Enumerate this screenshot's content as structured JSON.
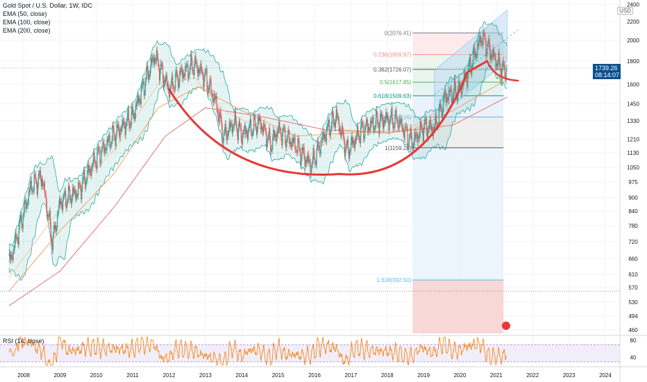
{
  "header": {
    "symbol": "Gold Spot / U.S. Dollar, 1W, IDC",
    "indicators": [
      "EMA (50, close)",
      "EMA (100, close)",
      "EMA (200, close)"
    ],
    "rsi_label": "RSI (14, close)",
    "currency": "USD"
  },
  "price_tag": {
    "price": "1739.26",
    "countdown": "08:14:07"
  },
  "colors": {
    "bull": "#26a69a",
    "bear": "#ef5350",
    "cup": "#e53935",
    "bb": "#26a69a",
    "rsi": "#f57c00",
    "ema50": "#f7c79b",
    "ema100": "#f4a261",
    "ema200": "#e57373"
  },
  "chart_data": {
    "type": "candlestick",
    "scale": "log",
    "ylim": [
      445,
      2450
    ],
    "xlim": [
      2007.6,
      2024.9
    ],
    "y_ticks": [
      2400,
      2200,
      2000,
      1800,
      1600,
      1450,
      1330,
      1210,
      1130,
      1050,
      975,
      900,
      840,
      780,
      720,
      660,
      610,
      570,
      530,
      494,
      460
    ],
    "x_ticks": [
      "2008",
      "2009",
      "2010",
      "2011",
      "2012",
      "2013",
      "2014",
      "2015",
      "2016",
      "2017",
      "2018",
      "2019",
      "2020",
      "2021",
      "2022",
      "2023",
      "2024"
    ],
    "price_path": [
      [
        2007.6,
        640
      ],
      [
        2008.2,
        950
      ],
      [
        2008.5,
        1000
      ],
      [
        2008.8,
        720
      ],
      [
        2009.0,
        880
      ],
      [
        2009.5,
        930
      ],
      [
        2010.0,
        1100
      ],
      [
        2010.5,
        1240
      ],
      [
        2011.0,
        1360
      ],
      [
        2011.6,
        1850
      ],
      [
        2011.8,
        1700
      ],
      [
        2012.0,
        1560
      ],
      [
        2012.3,
        1680
      ],
      [
        2012.7,
        1770
      ],
      [
        2013.0,
        1660
      ],
      [
        2013.3,
        1450
      ],
      [
        2013.5,
        1230
      ],
      [
        2013.8,
        1320
      ],
      [
        2014.0,
        1240
      ],
      [
        2014.5,
        1320
      ],
      [
        2014.8,
        1180
      ],
      [
        2015.0,
        1270
      ],
      [
        2015.5,
        1170
      ],
      [
        2015.9,
        1060
      ],
      [
        2016.0,
        1100
      ],
      [
        2016.3,
        1250
      ],
      [
        2016.6,
        1360
      ],
      [
        2016.9,
        1140
      ],
      [
        2017.3,
        1270
      ],
      [
        2017.7,
        1320
      ],
      [
        2018.0,
        1340
      ],
      [
        2018.3,
        1330
      ],
      [
        2018.7,
        1190
      ],
      [
        2019.0,
        1290
      ],
      [
        2019.3,
        1280
      ],
      [
        2019.6,
        1500
      ],
      [
        2020.0,
        1560
      ],
      [
        2020.2,
        1680
      ],
      [
        2020.6,
        2040
      ],
      [
        2020.9,
        1850
      ],
      [
        2021.2,
        1710
      ],
      [
        2021.3,
        1740
      ]
    ],
    "ema50": [
      [
        2007.6,
        600
      ],
      [
        2009.0,
        850
      ],
      [
        2010.5,
        1150
      ],
      [
        2011.7,
        1600
      ],
      [
        2012.7,
        1650
      ],
      [
        2013.5,
        1400
      ],
      [
        2014.5,
        1280
      ],
      [
        2015.9,
        1120
      ],
      [
        2016.8,
        1270
      ],
      [
        2018.5,
        1260
      ],
      [
        2019.7,
        1450
      ],
      [
        2020.8,
        1850
      ],
      [
        2021.3,
        1830
      ]
    ],
    "ema100": [
      [
        2007.6,
        560
      ],
      [
        2009.0,
        760
      ],
      [
        2010.5,
        1020
      ],
      [
        2011.7,
        1420
      ],
      [
        2012.8,
        1580
      ],
      [
        2014.0,
        1400
      ],
      [
        2015.5,
        1230
      ],
      [
        2017.0,
        1250
      ],
      [
        2018.7,
        1270
      ],
      [
        2019.8,
        1400
      ],
      [
        2021.3,
        1640
      ]
    ],
    "ema200": [
      [
        2007.6,
        520
      ],
      [
        2009.0,
        620
      ],
      [
        2010.5,
        860
      ],
      [
        2011.9,
        1230
      ],
      [
        2013.0,
        1420
      ],
      [
        2014.5,
        1360
      ],
      [
        2016.3,
        1270
      ],
      [
        2018.0,
        1250
      ],
      [
        2019.8,
        1300
      ],
      [
        2021.3,
        1500
      ]
    ],
    "cup_curve": {
      "start": [
        2012.0,
        1560
      ],
      "bottom": [
        2016.7,
        1015
      ],
      "end": [
        2020.2,
        1700
      ],
      "arrow_tip": [
        2021.6,
        1630
      ]
    },
    "channel": {
      "lower": [
        [
          2019.3,
          1340
        ],
        [
          2021.3,
          1800
        ]
      ],
      "upper": [
        [
          2019.3,
          1720
        ],
        [
          2021.3,
          2330
        ]
      ]
    },
    "fibonacci": {
      "x_range": [
        2018.7,
        2021.2
      ],
      "levels": [
        {
          "ratio": "0",
          "price": 2076.41,
          "label": "0(2076.41)",
          "color": "#787b86"
        },
        {
          "ratio": "0.236",
          "price": 1859.97,
          "label": "0.236(1859.97)",
          "color": "#f28b82"
        },
        {
          "ratio": "0.382",
          "price": 1726.07,
          "label": "0.382(1726.07)",
          "color": "#555555"
        },
        {
          "ratio": "0.5",
          "price": 1617.85,
          "label": "0.5(1617.85)",
          "color": "#4caf50"
        },
        {
          "ratio": "0.618",
          "price": 1509.63,
          "label": "0.618(1509.63)",
          "color": "#009688"
        },
        {
          "ratio": "0.786",
          "price": 1355.16,
          "label": "0.786(1355.16)",
          "color": "#64b5f6"
        },
        {
          "ratio": "1",
          "price": 1159.28,
          "label": "1(1159.28)",
          "color": "#555555"
        },
        {
          "ratio": "1.618",
          "price": 592.5,
          "label": "1.618(592.50)",
          "color": "#64b5f6"
        }
      ]
    },
    "rsi": {
      "levels": [
        80,
        40
      ],
      "ylim": [
        20,
        90
      ],
      "upper_band": 70,
      "lower_band": 30
    }
  }
}
